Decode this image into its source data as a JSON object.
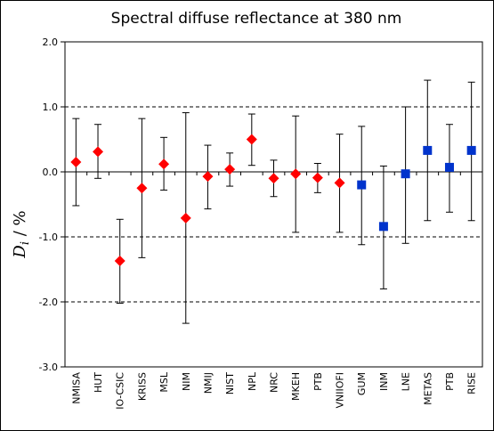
{
  "chart_data": {
    "type": "scatter",
    "title": "Spectral diffuse reflectance at 380 nm",
    "ylabel": {
      "main": "D",
      "sub": "i",
      "rest": " / %"
    },
    "xlabel": "",
    "ylim": [
      -3.0,
      2.0
    ],
    "yticks": [
      "2.0",
      "1.0",
      "0.0",
      "-1.0",
      "-2.0",
      "-3.0"
    ],
    "ytick_values": [
      2,
      1,
      0,
      -1,
      -2,
      -3
    ],
    "dashed_gridlines": [
      1,
      -1,
      -2
    ],
    "zero_line": 0,
    "categories": [
      "NMISA",
      "HUT",
      "IO-CSIC",
      "KRISS",
      "MSL",
      "NIM",
      "NMIJ",
      "NIST",
      "NPL",
      "NRC",
      "MKEH",
      "PTB",
      "VNIIOFI",
      "GUM",
      "INM",
      "LNE",
      "METAS",
      "PTB",
      "RISE"
    ],
    "values": [
      0.15,
      0.31,
      -1.37,
      -0.25,
      0.12,
      -0.71,
      -0.07,
      0.04,
      0.5,
      -0.1,
      -0.03,
      -0.09,
      -0.17,
      -0.2,
      -0.84,
      -0.03,
      0.33,
      0.07,
      0.33
    ],
    "err_upper": [
      0.82,
      0.73,
      -0.73,
      0.82,
      0.53,
      0.91,
      0.41,
      0.29,
      0.89,
      0.18,
      0.86,
      0.13,
      0.58,
      0.7,
      0.09,
      1.0,
      1.41,
      0.73,
      1.38
    ],
    "err_lower": [
      -0.52,
      -0.1,
      -2.02,
      -1.32,
      -0.28,
      -2.33,
      -0.57,
      -0.22,
      0.1,
      -0.38,
      -0.93,
      -0.32,
      -0.93,
      -1.12,
      -1.8,
      -1.1,
      -0.75,
      -0.62,
      -0.75
    ],
    "marker": [
      "diamond",
      "diamond",
      "diamond",
      "diamond",
      "diamond",
      "diamond",
      "diamond",
      "diamond",
      "diamond",
      "diamond",
      "diamond",
      "diamond",
      "diamond",
      "square",
      "square",
      "square",
      "square",
      "square",
      "square"
    ],
    "colors": {
      "diamond": "#ff0000",
      "square": "#0033cc",
      "axis": "#000000",
      "errorbar": "#000000"
    },
    "grid": "dashed horizontal at 1.0, -1.0, -2.0",
    "legend": "none"
  }
}
